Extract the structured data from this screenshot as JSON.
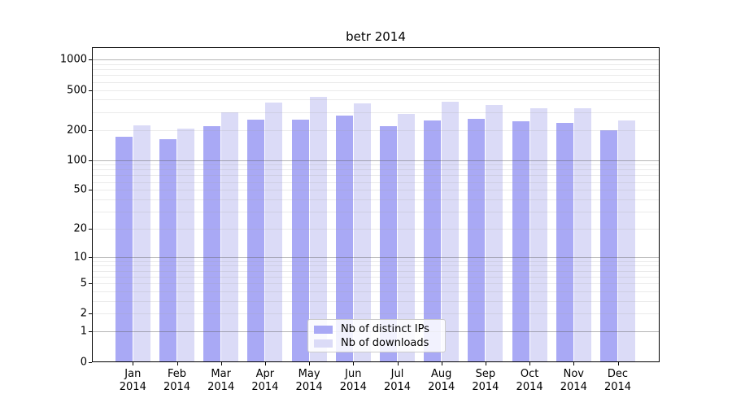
{
  "title": "betr 2014",
  "colors": {
    "ips_bar": "#a9a9f5",
    "downloads_bar": "#dbdbf7",
    "axis": "#000000",
    "grid_major": "rgba(90,90,90,0.45)",
    "grid_minor": "rgba(160,160,160,0.22)",
    "legend_border": "#cccccc"
  },
  "legend": {
    "items": [
      {
        "label": "Nb of distinct IPs",
        "color_key": "ips_bar"
      },
      {
        "label": "Nb of downloads",
        "color_key": "downloads_bar"
      }
    ]
  },
  "chart_data": {
    "type": "bar",
    "title": "betr 2014",
    "categories": [
      "Jan 2014",
      "Feb 2014",
      "Mar 2014",
      "Apr 2014",
      "May 2014",
      "Jun 2014",
      "Jul 2014",
      "Aug 2014",
      "Sep 2014",
      "Oct 2014",
      "Nov 2014",
      "Dec 2014"
    ],
    "series": [
      {
        "name": "Nb of distinct IPs",
        "color_key": "ips_bar",
        "values": [
          170,
          162,
          217,
          255,
          252,
          279,
          216,
          247,
          260,
          245,
          237,
          200
        ]
      },
      {
        "name": "Nb of downloads",
        "color_key": "downloads_bar",
        "values": [
          222,
          207,
          300,
          375,
          428,
          368,
          289,
          382,
          354,
          328,
          331,
          248
        ]
      }
    ],
    "xlabel": "",
    "ylabel": "",
    "yscale": "log10(1+v)",
    "ylim": [
      0,
      1330
    ],
    "y_ticks": [
      0,
      1,
      2,
      5,
      10,
      20,
      50,
      100,
      200,
      500,
      1000
    ],
    "grid": "both, drawn over bars; major lines at powers of 10, minor at 2-9 per decade",
    "legend_position": "lower center inside plot"
  }
}
